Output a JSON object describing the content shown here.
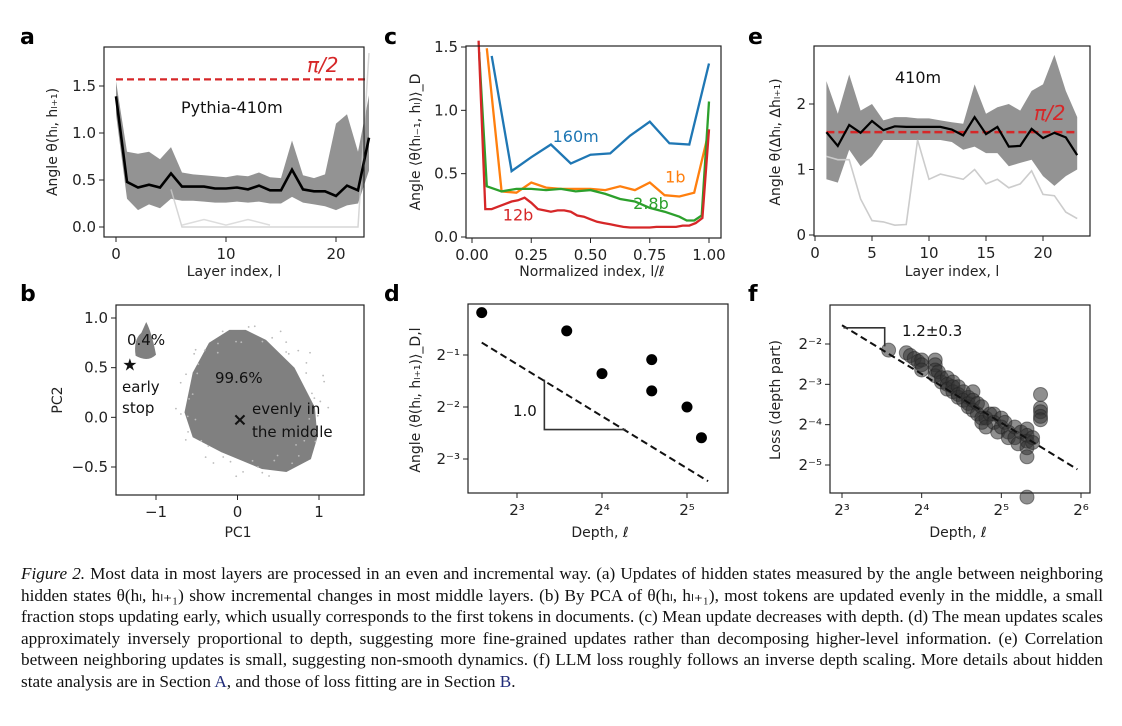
{
  "figure_number_label": "Figure 2.",
  "caption": {
    "figure_label": "Figure 2.",
    "text_before_A": " Most data in most layers are processed in an even and incremental way. (a) Updates of hidden states measured by the angle between neighboring hidden states θ(hₗ, hₗ₊₁) show incremental changes in most middle layers. (b) By PCA of θ(hₗ, hₗ₊₁), most tokens are updated evenly in the middle, a small fraction stops updating early, which usually corresponds to the first tokens in documents. (c) Mean update decreases with depth. (d) The mean updates scales approximately inversely proportional to depth, suggesting more fine-grained updates rather than decomposing higher-level information. (e) Correlation between neighboring updates is small, suggesting non-smooth dynamics. (f) LLM loss roughly follows an inverse depth scaling. More details about hidden state analysis are in Section ",
    "ref_A": "A",
    "text_between": ", and those of loss fitting are in Section ",
    "ref_B": "B",
    "text_end": "."
  },
  "colors": {
    "red_dashed": "#d62728",
    "gray_cloud": "#808080",
    "black_mean": "#000000",
    "blue_160m": "#1f77b4",
    "orange_1b": "#ff7f0e",
    "green_2_8b": "#2ca02c",
    "red_12b": "#d62728",
    "caption_link": "#1f2a78"
  },
  "chart_data": [
    {
      "panel": "a",
      "type": "line",
      "title": "",
      "annotation": "Pythia-410m",
      "reference_line": {
        "label": "π/2",
        "y": 1.5708,
        "style": "dashed",
        "color": "#d62728"
      },
      "xlabel": "Layer index, l",
      "ylabel": "Angle θ(hₗ, hₗ₊₁)",
      "xlim": [
        -1,
        24
      ],
      "ylim": [
        -0.07,
        1.82
      ],
      "xticks": [
        0,
        10,
        20
      ],
      "yticks": [
        0.0,
        0.5,
        1.0,
        1.5
      ],
      "ytick_labels": [
        "0.0",
        "0.5",
        "1.0",
        "1.5"
      ],
      "series": [
        {
          "name": "mean",
          "color": "#000000",
          "x": [
            0,
            1,
            2,
            3,
            4,
            5,
            6,
            7,
            8,
            9,
            10,
            11,
            12,
            13,
            14,
            15,
            16,
            17,
            18,
            19,
            20,
            21,
            22,
            23
          ],
          "y": [
            1.39,
            0.48,
            0.42,
            0.45,
            0.42,
            0.57,
            0.43,
            0.43,
            0.43,
            0.41,
            0.41,
            0.42,
            0.4,
            0.44,
            0.39,
            0.39,
            0.61,
            0.4,
            0.38,
            0.38,
            0.33,
            0.44,
            0.39,
            0.95
          ]
        },
        {
          "name": "cloud_upper",
          "color": "#808080",
          "x": [
            0,
            1,
            2,
            3,
            4,
            5,
            6,
            7,
            8,
            9,
            10,
            11,
            12,
            13,
            14,
            15,
            16,
            17,
            18,
            19,
            20,
            21,
            22,
            23
          ],
          "y": [
            1.55,
            0.8,
            0.78,
            0.8,
            0.72,
            0.85,
            0.58,
            0.56,
            0.55,
            0.54,
            0.53,
            0.55,
            0.54,
            0.58,
            0.53,
            0.52,
            0.92,
            0.55,
            0.52,
            0.56,
            1.1,
            1.2,
            0.8,
            1.4
          ]
        },
        {
          "name": "cloud_lower",
          "color": "#808080",
          "x": [
            0,
            1,
            2,
            3,
            4,
            5,
            6,
            7,
            8,
            9,
            10,
            11,
            12,
            13,
            14,
            15,
            16,
            17,
            18,
            19,
            20,
            21,
            22,
            23
          ],
          "y": [
            1.2,
            0.3,
            0.18,
            0.24,
            0.2,
            0.3,
            0.28,
            0.28,
            0.27,
            0.26,
            0.26,
            0.27,
            0.26,
            0.27,
            0.25,
            0.25,
            0.32,
            0.26,
            0.24,
            0.22,
            0.18,
            0.23,
            0.25,
            0.6
          ]
        }
      ]
    },
    {
      "panel": "b",
      "type": "scatter",
      "xlabel": "PC1",
      "ylabel": "PC2",
      "xlim": [
        -1.5,
        1.55
      ],
      "ylim": [
        -0.77,
        1.1
      ],
      "xticks": [
        -1,
        0,
        1
      ],
      "xtick_labels": [
        "−1",
        "0",
        "1"
      ],
      "yticks": [
        -0.5,
        0.0,
        0.5,
        1.0
      ],
      "ytick_labels": [
        "−0.5",
        "0.0",
        "0.5",
        "1.0"
      ],
      "clusters": [
        {
          "name": "early stop",
          "fraction_label": "0.4%",
          "center": [
            -1.15,
            0.72
          ],
          "color": "#808080"
        },
        {
          "name": "evenly in the middle",
          "fraction_label": "99.6%",
          "center": [
            0.05,
            0.05
          ],
          "color": "#808080"
        }
      ],
      "markers": [
        {
          "symbol": "star",
          "x": -1.32,
          "y": 0.53,
          "label": "early\nstop"
        },
        {
          "symbol": "x",
          "x": 0.03,
          "y": -0.02,
          "label": "evenly in\nthe middle"
        }
      ]
    },
    {
      "panel": "c",
      "type": "line",
      "xlabel": "Normalized index, l/ℓ",
      "ylabel": "Angle ⟨θ(hₗ₋₁, hₗ)⟩_D",
      "xlim": [
        -0.02,
        1.04
      ],
      "ylim": [
        0.0,
        1.55
      ],
      "xticks": [
        0.0,
        0.25,
        0.5,
        0.75,
        1.0
      ],
      "xtick_labels": [
        "0.00",
        "0.25",
        "0.50",
        "0.75",
        "1.00"
      ],
      "yticks": [
        0.0,
        0.5,
        1.0,
        1.5
      ],
      "ytick_labels": [
        "0.0",
        "0.5",
        "1.0",
        "1.5"
      ],
      "series": [
        {
          "name": "160m",
          "color": "#1f77b4",
          "x": [
            0.083,
            0.167,
            0.25,
            0.333,
            0.417,
            0.5,
            0.583,
            0.667,
            0.75,
            0.833,
            0.917,
            1.0
          ],
          "y": [
            1.43,
            0.52,
            0.63,
            0.73,
            0.58,
            0.65,
            0.66,
            0.8,
            0.91,
            0.74,
            0.73,
            1.37
          ]
        },
        {
          "name": "1b",
          "color": "#ff7f0e",
          "x": [
            0.0625,
            0.125,
            0.1875,
            0.25,
            0.3125,
            0.375,
            0.4375,
            0.5,
            0.5625,
            0.625,
            0.6875,
            0.75,
            0.8125,
            0.875,
            0.9375,
            1.0
          ],
          "y": [
            1.49,
            0.36,
            0.35,
            0.43,
            0.39,
            0.38,
            0.38,
            0.38,
            0.37,
            0.4,
            0.37,
            0.43,
            0.33,
            0.32,
            0.35,
            0.84
          ]
        },
        {
          "name": "2.8b",
          "color": "#2ca02c",
          "x": [
            0.03,
            0.0625,
            0.125,
            0.156,
            0.1875,
            0.25,
            0.3125,
            0.375,
            0.4375,
            0.5,
            0.5625,
            0.625,
            0.6875,
            0.75,
            0.8125,
            0.875,
            0.906,
            0.938,
            0.969,
            1.0
          ],
          "y": [
            1.46,
            0.4,
            0.36,
            0.37,
            0.38,
            0.38,
            0.37,
            0.38,
            0.36,
            0.37,
            0.34,
            0.3,
            0.28,
            0.23,
            0.2,
            0.16,
            0.13,
            0.13,
            0.17,
            1.07
          ]
        },
        {
          "name": "12b",
          "color": "#d62728",
          "x": [
            0.028,
            0.056,
            0.083,
            0.111,
            0.139,
            0.167,
            0.194,
            0.222,
            0.25,
            0.278,
            0.306,
            0.333,
            0.361,
            0.389,
            0.417,
            0.444,
            0.472,
            0.5,
            0.528,
            0.556,
            0.583,
            0.611,
            0.639,
            0.667,
            0.694,
            0.722,
            0.75,
            0.778,
            0.806,
            0.833,
            0.861,
            0.889,
            0.917,
            0.944,
            0.972,
            1.0
          ],
          "y": [
            1.55,
            0.22,
            0.22,
            0.24,
            0.26,
            0.28,
            0.29,
            0.31,
            0.27,
            0.22,
            0.21,
            0.2,
            0.21,
            0.21,
            0.2,
            0.17,
            0.16,
            0.14,
            0.12,
            0.11,
            0.1,
            0.09,
            0.08,
            0.075,
            0.075,
            0.075,
            0.075,
            0.08,
            0.08,
            0.08,
            0.08,
            0.09,
            0.09,
            0.11,
            0.15,
            0.85
          ]
        }
      ],
      "series_labels": [
        "160m",
        "1b",
        "2.8b",
        "12b"
      ]
    },
    {
      "panel": "d",
      "type": "scatter",
      "scale": "log2-log2",
      "xlabel": "Depth, ℓ",
      "ylabel": "Angle ⟨θ(hₗ, hₗ₊₁)⟩_D,l",
      "xticks": [
        8,
        16,
        32
      ],
      "xtick_labels": [
        "2³",
        "2⁴",
        "2⁵"
      ],
      "yticks": [
        0.5,
        0.25,
        0.125
      ],
      "ytick_labels": [
        "2⁻¹",
        "2⁻²",
        "2⁻³"
      ],
      "xlim": [
        6.1,
        39
      ],
      "ylim": [
        0.082,
        0.97
      ],
      "x": [
        6,
        12,
        16,
        24,
        24,
        32,
        36
      ],
      "y": [
        0.88,
        0.69,
        0.39,
        0.47,
        0.31,
        0.25,
        0.166
      ],
      "fit_line": {
        "slope": -1.0,
        "x": [
          6,
          38
        ],
        "y": [
          0.59,
          0.093
        ],
        "style": "dashed"
      },
      "slope_annotation": "1.0"
    },
    {
      "panel": "f",
      "type": "scatter",
      "scale": "log2-log2",
      "xlabel": "Depth, ℓ",
      "ylabel": "Loss (depth part)",
      "xticks": [
        8,
        16,
        32,
        64
      ],
      "xtick_labels": [
        "2³",
        "2⁴",
        "2⁵",
        "2⁶"
      ],
      "yticks": [
        0.25,
        0.125,
        0.0625,
        0.03125
      ],
      "ytick_labels": [
        "2⁻²",
        "2⁻³",
        "2⁻⁴",
        "2⁻⁵"
      ],
      "xlim": [
        7.5,
        68
      ],
      "ylim": [
        0.0143,
        0.38
      ],
      "points": [
        [
          12,
          0.225
        ],
        [
          14,
          0.215
        ],
        [
          14.5,
          0.205
        ],
        [
          15,
          0.195
        ],
        [
          15.5,
          0.185
        ],
        [
          16,
          0.19
        ],
        [
          16,
          0.175
        ],
        [
          16,
          0.16
        ],
        [
          18,
          0.19
        ],
        [
          18,
          0.175
        ],
        [
          18,
          0.16
        ],
        [
          18,
          0.145
        ],
        [
          18.5,
          0.155
        ],
        [
          19,
          0.13
        ],
        [
          19,
          0.14
        ],
        [
          20,
          0.14
        ],
        [
          20,
          0.125
        ],
        [
          20,
          0.115
        ],
        [
          21,
          0.13
        ],
        [
          21,
          0.12
        ],
        [
          21,
          0.11
        ],
        [
          22,
          0.12
        ],
        [
          22,
          0.105
        ],
        [
          22,
          0.1
        ],
        [
          23,
          0.11
        ],
        [
          23,
          0.095
        ],
        [
          24,
          0.1
        ],
        [
          24,
          0.09
        ],
        [
          24,
          0.085
        ],
        [
          25,
          0.11
        ],
        [
          25,
          0.095
        ],
        [
          25,
          0.08
        ],
        [
          26,
          0.09
        ],
        [
          26,
          0.075
        ],
        [
          27,
          0.085
        ],
        [
          27,
          0.07
        ],
        [
          27,
          0.065
        ],
        [
          28,
          0.07
        ],
        [
          28,
          0.06
        ],
        [
          29,
          0.075
        ],
        [
          30,
          0.075
        ],
        [
          30,
          0.065
        ],
        [
          31,
          0.055
        ],
        [
          32,
          0.07
        ],
        [
          32,
          0.06
        ],
        [
          33,
          0.065
        ],
        [
          34,
          0.055
        ],
        [
          34,
          0.05
        ],
        [
          36,
          0.06
        ],
        [
          36,
          0.05
        ],
        [
          37,
          0.045
        ],
        [
          38,
          0.055
        ],
        [
          40,
          0.058
        ],
        [
          40,
          0.052
        ],
        [
          40,
          0.047
        ],
        [
          40,
          0.042
        ],
        [
          40,
          0.036
        ],
        [
          40,
          0.018
        ],
        [
          42,
          0.05
        ],
        [
          42,
          0.046
        ],
        [
          45,
          0.105
        ],
        [
          45,
          0.083
        ],
        [
          45,
          0.078
        ],
        [
          45,
          0.072
        ],
        [
          45,
          0.068
        ]
      ],
      "fit_line": {
        "slope": -1.2,
        "x": [
          8,
          62
        ],
        "y": [
          0.345,
          0.029
        ],
        "style": "dashed"
      },
      "slope_annotation": "1.2±0.3"
    }
  ],
  "panels": {
    "a": {
      "letter": "a",
      "annotation": "Pythia-410m",
      "ref_label": "π/2",
      "xlabel": "Layer index, l",
      "ylabel": "Angle θ(hₗ, hₗ₊₁)"
    },
    "b": {
      "letter": "b",
      "xlabel": "PC1",
      "ylabel": "PC2",
      "pct_small": "0.4%",
      "pct_large": "99.6%",
      "label_early_1": "early",
      "label_early_2": "stop",
      "label_even_1": "evenly in",
      "label_even_2": "the middle"
    },
    "c": {
      "letter": "c",
      "xlabel": "Normalized index, l/ℓ",
      "ylabel": "Angle ⟨θ(hₗ₋₁, hₗ)⟩_D"
    },
    "d": {
      "letter": "d",
      "xlabel": "Depth, ℓ",
      "ylabel": "Angle ⟨θ(hₗ, hₗ₊₁)⟩_D,l",
      "slope": "1.0"
    },
    "e": {
      "letter": "e",
      "annotation": "410m",
      "ref_label": "π/2",
      "xlabel": "Layer index, l",
      "ylabel": "Angle θ(Δhₗ, Δhₗ₊₁)"
    },
    "f": {
      "letter": "f",
      "xlabel": "Depth, ℓ",
      "ylabel": "Loss (depth part)",
      "slope": "1.2±0.3"
    }
  },
  "panel_e_data": {
    "type": "line",
    "xlim": [
      -0.3,
      24.2
    ],
    "ylim": [
      0,
      2.8
    ],
    "xticks": [
      0,
      5,
      10,
      15,
      20
    ],
    "yticks": [
      0,
      1,
      2
    ],
    "reference_line": {
      "label": "π/2",
      "y": 1.5708
    },
    "mean": {
      "x": [
        1,
        2,
        3,
        4,
        5,
        6,
        7,
        8,
        9,
        10,
        11,
        12,
        13,
        14,
        15,
        16,
        17,
        18,
        19,
        20,
        21,
        22,
        23
      ],
      "y": [
        1.57,
        1.36,
        1.68,
        1.56,
        1.74,
        1.6,
        1.66,
        1.65,
        1.65,
        1.65,
        1.65,
        1.61,
        1.52,
        1.8,
        1.54,
        1.65,
        1.35,
        1.36,
        1.62,
        1.48,
        1.56,
        1.49,
        1.22
      ]
    },
    "cloud_upper": [
      2.35,
      1.85,
      2.45,
      1.9,
      2.0,
      1.75,
      1.8,
      1.8,
      1.78,
      1.78,
      1.75,
      1.72,
      1.7,
      2.3,
      1.85,
      1.95,
      2.0,
      1.9,
      2.2,
      2.3,
      2.75,
      2.2,
      1.8
    ],
    "cloud_lower": [
      0.85,
      0.8,
      1.3,
      1.05,
      1.2,
      1.45,
      1.45,
      1.45,
      1.45,
      1.45,
      1.45,
      1.42,
      1.3,
      1.35,
      1.25,
      1.25,
      1.05,
      1.1,
      1.15,
      0.9,
      0.75,
      0.9,
      1.0
    ]
  }
}
